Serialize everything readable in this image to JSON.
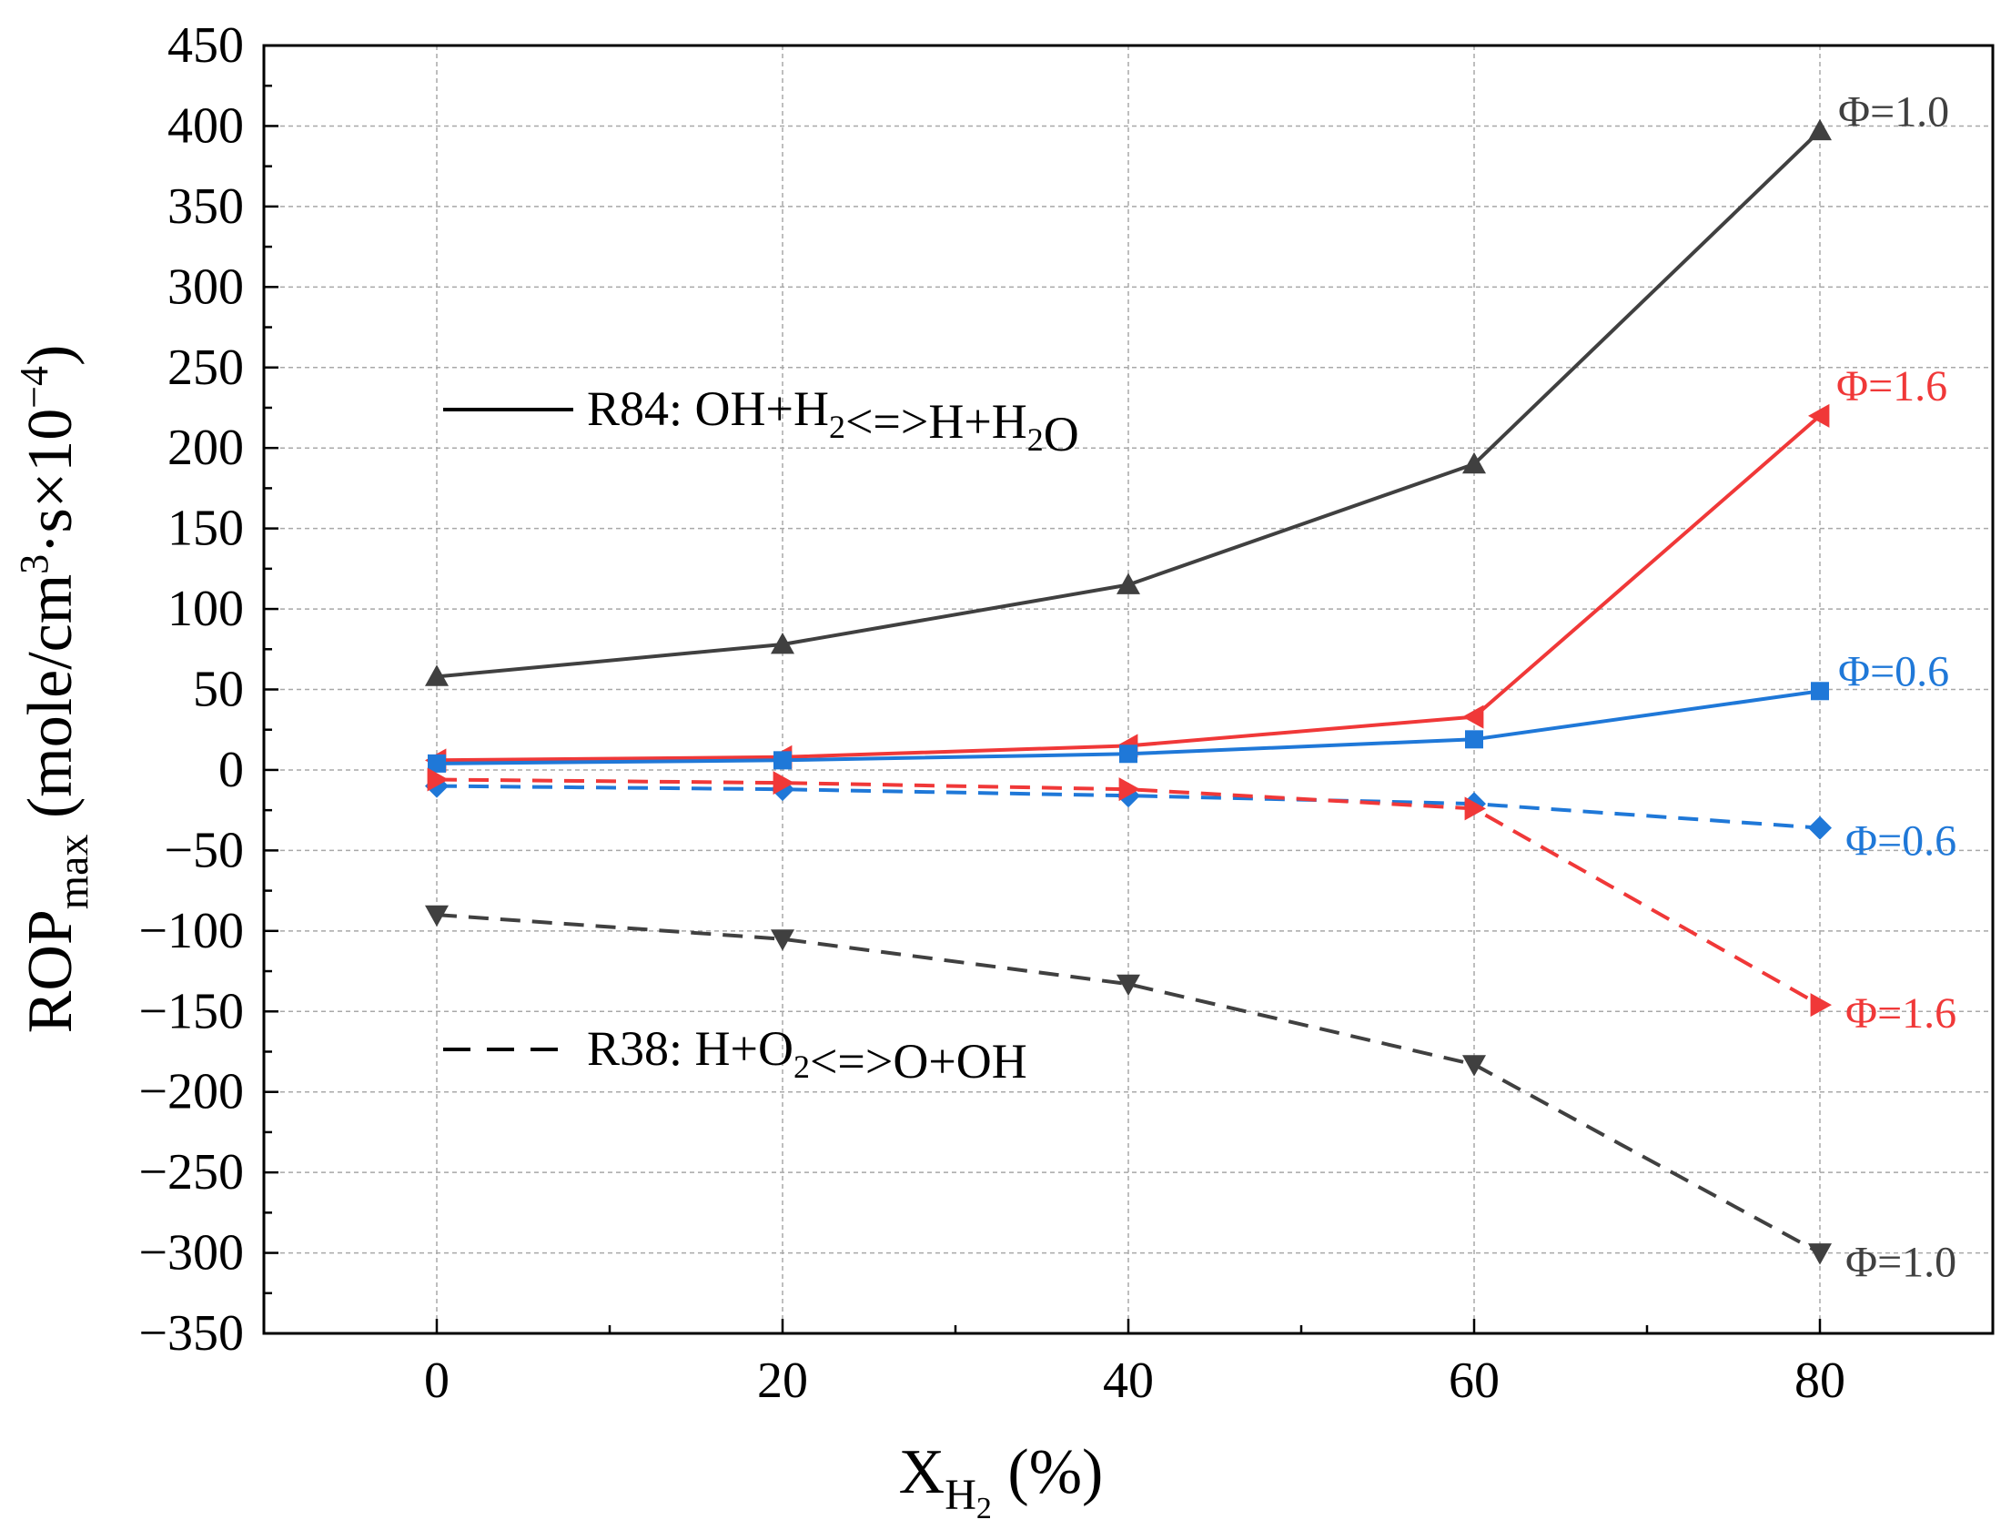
{
  "chart_data": {
    "type": "line",
    "x": [
      0,
      20,
      40,
      60,
      80
    ],
    "xlim": [
      -10,
      90
    ],
    "ylim": [
      -350,
      450
    ],
    "xticks": [
      0,
      20,
      40,
      60,
      80
    ],
    "xtick_labels": [
      "0",
      "20",
      "40",
      "60",
      "80"
    ],
    "yticks": [
      -350,
      -300,
      -250,
      -200,
      -150,
      -100,
      -50,
      0,
      50,
      100,
      150,
      200,
      250,
      300,
      350,
      400,
      450
    ],
    "ytick_labels": [
      "−350",
      "−300",
      "−250",
      "−200",
      "−150",
      "−100",
      "−50",
      "0",
      "50",
      "100",
      "150",
      "200",
      "250",
      "300",
      "350",
      "400",
      "450"
    ],
    "grid": true,
    "xlabel": {
      "main": "X",
      "sub": "H",
      "subsub": "2",
      "tail": " (%)"
    },
    "ylabel": {
      "main": "ROP",
      "sub": "max",
      "open": " (mole/cm",
      "sup1": "3",
      "mid": "·s×10",
      "sup2": "−4",
      "close": ")"
    },
    "legend": [
      {
        "style": "solid",
        "parts": [
          {
            "t": "R84: OH+H"
          },
          {
            "t": "2",
            "sub": true
          },
          {
            "t": "<=>H+H"
          },
          {
            "t": "2",
            "sub": true
          },
          {
            "t": "O"
          }
        ]
      },
      {
        "style": "dashed",
        "parts": [
          {
            "t": "R38: H+O"
          },
          {
            "t": "2",
            "sub": true
          },
          {
            "t": "<=>O+OH"
          }
        ]
      }
    ],
    "series": [
      {
        "name": "R84 Φ=1.0",
        "label": "Φ=1.0",
        "reaction": "R84",
        "values": [
          58,
          78,
          115,
          190,
          397
        ],
        "color": "#404040",
        "marker": "triangle-up",
        "dash": false
      },
      {
        "name": "R84 Φ=1.6",
        "label": "Φ=1.6",
        "reaction": "R84",
        "values": [
          6,
          8,
          15,
          33,
          220
        ],
        "color": "#f03838",
        "marker": "triangle-left",
        "dash": false
      },
      {
        "name": "R84 Φ=0.6",
        "label": "Φ=0.6",
        "reaction": "R84",
        "values": [
          4,
          6,
          10,
          19,
          49
        ],
        "color": "#1f78d8",
        "marker": "square",
        "dash": false
      },
      {
        "name": "R38 Φ=0.6",
        "label": "Φ=0.6",
        "reaction": "R38",
        "values": [
          -10,
          -12,
          -16,
          -21,
          -36
        ],
        "color": "#1f78d8",
        "marker": "diamond",
        "dash": true
      },
      {
        "name": "R38 Φ=1.6",
        "label": "Φ=1.6",
        "reaction": "R38",
        "values": [
          -6,
          -8,
          -12,
          -24,
          -146
        ],
        "color": "#f03838",
        "marker": "triangle-right",
        "dash": true
      },
      {
        "name": "R38 Φ=1.0",
        "label": "Φ=1.0",
        "reaction": "R38",
        "values": [
          -90,
          -105,
          -133,
          -183,
          -300
        ],
        "color": "#404040",
        "marker": "triangle-down",
        "dash": true
      }
    ]
  }
}
